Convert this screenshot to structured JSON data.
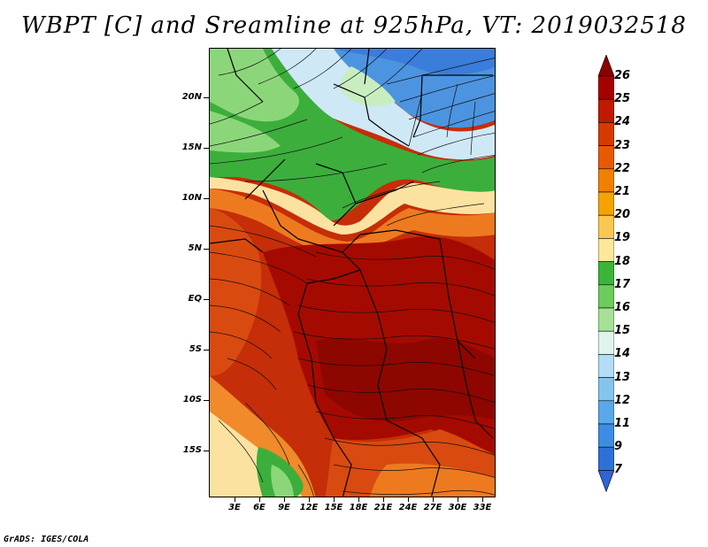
{
  "title": "WBPT [C] and Sreamline at 925hPa, VT: 2019032518",
  "credit": "GrADS: IGES/COLA",
  "lat_labels": [
    "20N",
    "15N",
    "10N",
    "5N",
    "EQ",
    "5S",
    "10S",
    "15S"
  ],
  "lon_labels": [
    "3E",
    "6E",
    "9E",
    "12E",
    "15E",
    "18E",
    "21E",
    "24E",
    "27E",
    "30E",
    "33E"
  ],
  "colorbar": {
    "labels": [
      "26",
      "25",
      "24",
      "23",
      "22",
      "21",
      "20",
      "19",
      "18",
      "17",
      "16",
      "15",
      "14",
      "13",
      "12",
      "11",
      "9",
      "7"
    ],
    "colors": [
      "#a50000",
      "#c01a00",
      "#d63a00",
      "#e85a00",
      "#f08000",
      "#f5a300",
      "#fac850",
      "#fde89a",
      "#3cb43c",
      "#6ccc5c",
      "#a6e296",
      "#dff5ec",
      "#b3dcf5",
      "#86c4f0",
      "#5aa8ea",
      "#3c8ee4",
      "#2e70d8"
    ],
    "end_colors": {
      "top": "#8b0000",
      "bottom": "#2e64d4"
    }
  },
  "fields": {
    "palette": {
      "deep_red": "#9e0c00",
      "red": "#c02a06",
      "red_orange": "#d94a10",
      "orange": "#ee7a20",
      "light_orange": "#f7b04c",
      "pale_yellow": "#fbe2a0",
      "green": "#3cae3c",
      "light_green": "#8cd67a",
      "pale_green": "#c8eec0",
      "pale_blue": "#cfe8f6",
      "blue": "#79b6ea",
      "mid_blue": "#4c94e0"
    }
  }
}
